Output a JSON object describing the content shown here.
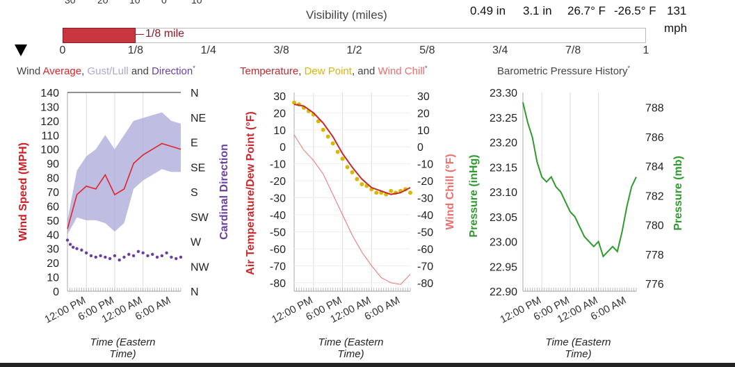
{
  "header": {
    "cut_ticks": [
      "30",
      "20",
      "10",
      "0",
      "10"
    ],
    "visibility_title": "Visibility (miles)",
    "stats": [
      "0.49 in",
      "3.1 in",
      "26.7° F",
      "-26.5° F",
      "131"
    ],
    "stats_unit": "mph"
  },
  "visibility": {
    "value_label": "1/8 mile",
    "value_fraction": 0.125,
    "ticks": [
      "0",
      "1/8",
      "1/4",
      "3/8",
      "1/2",
      "5/8",
      "3/4",
      "7/8",
      "1"
    ],
    "fill_color": "#c8363f"
  },
  "chart_titles": {
    "wind": [
      {
        "text": "Wind ",
        "color": "#444"
      },
      {
        "text": "Average",
        "color": "#e0242c"
      },
      {
        "text": ", ",
        "color": "#444"
      },
      {
        "text": "Gust/Lull",
        "color": "#a9a7d8"
      },
      {
        "text": " and ",
        "color": "#444"
      },
      {
        "text": "Direction",
        "color": "#6b3fa0"
      }
    ],
    "temp": [
      {
        "text": "Temperature",
        "color": "#c8272c"
      },
      {
        "text": ", ",
        "color": "#444"
      },
      {
        "text": "Dew Point",
        "color": "#d8b800"
      },
      {
        "text": ", and ",
        "color": "#444"
      },
      {
        "text": "Wind Chill",
        "color": "#ee6e6e"
      }
    ],
    "pressure": [
      {
        "text": "Barometric Pressure History",
        "color": "#444"
      }
    ],
    "asterisk": "*"
  },
  "chart_data": [
    {
      "type": "area",
      "name": "wind",
      "ylabel": "Wind Speed (MPH)",
      "y2label": "Cardinal Direction",
      "xlabel": "Time (Eastern Time)",
      "ylim": [
        0,
        140
      ],
      "yticks": [
        0,
        10,
        20,
        30,
        40,
        50,
        60,
        70,
        80,
        90,
        100,
        110,
        120,
        130,
        140
      ],
      "direction_ticks": [
        "N",
        "NE",
        "E",
        "SE",
        "S",
        "SW",
        "W",
        "NW",
        "N"
      ],
      "xticks": [
        "12:00 PM",
        "6:00 PM",
        "12:00 AM",
        "6:00 AM"
      ],
      "series": [
        {
          "name": "Average",
          "color": "#e0242c",
          "x": [
            0,
            2,
            4,
            6,
            8,
            10,
            12,
            14,
            16,
            18,
            20,
            22,
            24
          ],
          "values": [
            44,
            68,
            74,
            72,
            82,
            68,
            72,
            90,
            96,
            100,
            104,
            102,
            100
          ]
        },
        {
          "name": "Gust",
          "color": "#a9a7d8",
          "x": [
            0,
            2,
            4,
            6,
            8,
            10,
            12,
            14,
            16,
            18,
            20,
            22,
            24
          ],
          "values": [
            50,
            85,
            95,
            100,
            110,
            100,
            110,
            120,
            122,
            124,
            126,
            120,
            118
          ]
        },
        {
          "name": "Lull",
          "color": "#a9a7d8",
          "x": [
            0,
            2,
            4,
            6,
            8,
            10,
            12,
            14,
            16,
            18,
            20,
            22,
            24
          ],
          "values": [
            40,
            52,
            50,
            50,
            48,
            42,
            48,
            72,
            78,
            82,
            86,
            84,
            84
          ]
        },
        {
          "name": "Direction",
          "color": "#6b3fa0",
          "x": [
            0,
            2,
            4,
            6,
            8,
            10,
            12,
            14,
            16,
            18,
            20,
            22,
            24
          ],
          "values": [
            36,
            30,
            28,
            25,
            24,
            25,
            24,
            25,
            27,
            26,
            25,
            24,
            23
          ]
        }
      ],
      "direction_points": [
        [
          0,
          36
        ],
        [
          0.6,
          33
        ],
        [
          1.2,
          31
        ],
        [
          2,
          30
        ],
        [
          3,
          29
        ],
        [
          4,
          27
        ],
        [
          5,
          25
        ],
        [
          6,
          24
        ],
        [
          7,
          25
        ],
        [
          8,
          24
        ],
        [
          9,
          23
        ],
        [
          10,
          25
        ],
        [
          11,
          22
        ],
        [
          12,
          24
        ],
        [
          13,
          26
        ],
        [
          14,
          25
        ],
        [
          15,
          28
        ],
        [
          16,
          27
        ],
        [
          17,
          25
        ],
        [
          18,
          26
        ],
        [
          19,
          24
        ],
        [
          20,
          25
        ],
        [
          21,
          27
        ],
        [
          22,
          24
        ],
        [
          23,
          23
        ],
        [
          24,
          24
        ]
      ]
    },
    {
      "type": "line",
      "name": "temperature",
      "ylabel": "Air Temperature/Dew Point (°F)",
      "y2label": "Wind Chill (°F)",
      "xlabel": "Time (Eastern Time)",
      "ylim": [
        -85,
        32
      ],
      "yticks": [
        -80,
        -70,
        -60,
        -50,
        -40,
        -30,
        -20,
        -10,
        0,
        10,
        20,
        30
      ],
      "xticks": [
        "12:00 PM",
        "6:00 PM",
        "12:00 AM",
        "6:00 AM"
      ],
      "series": [
        {
          "name": "Temperature",
          "color": "#c8272c",
          "x": [
            0,
            2,
            4,
            6,
            8,
            10,
            12,
            14,
            16,
            18,
            20,
            22,
            24
          ],
          "values": [
            25,
            24,
            20,
            14,
            6,
            -4,
            -12,
            -19,
            -24,
            -26,
            -28,
            -27,
            -24
          ]
        },
        {
          "name": "Dew Point",
          "color": "#d8b800",
          "x": [
            0,
            1,
            2,
            3,
            4,
            5,
            6,
            7,
            8,
            9,
            10,
            11,
            12,
            13,
            14,
            15,
            16,
            17,
            18,
            19,
            20,
            21,
            22,
            23,
            24
          ],
          "values": [
            26,
            25,
            23,
            21,
            19,
            15,
            10,
            6,
            2,
            -3,
            -7,
            -12,
            -15,
            -19,
            -22,
            -23,
            -25,
            -27,
            -27,
            -28,
            -26,
            -27,
            -26,
            -25,
            -27
          ]
        },
        {
          "name": "Wind Chill",
          "color": "#ee6e6e",
          "x": [
            0,
            2,
            4,
            6,
            8,
            10,
            12,
            14,
            16,
            18,
            20,
            22,
            24
          ],
          "values": [
            7,
            -2,
            -8,
            -16,
            -28,
            -40,
            -52,
            -62,
            -70,
            -77,
            -80,
            -81,
            -75
          ]
        }
      ]
    },
    {
      "type": "line",
      "name": "pressure",
      "ylabel": "Pressure (inHg)",
      "y2label": "Pressure (mb)",
      "xlabel": "Time (Eastern Time)",
      "ylim": [
        22.9,
        23.3
      ],
      "yticks": [
        "22.90",
        "22.95",
        "23.00",
        "23.05",
        "23.10",
        "23.15",
        "23.20",
        "23.25",
        "23.30"
      ],
      "y2ticks": [
        "776",
        "778",
        "780",
        "782",
        "784",
        "786",
        "788"
      ],
      "xticks": [
        "12:00 PM",
        "6:00 PM",
        "12:00 AM",
        "6:00 AM"
      ],
      "series": [
        {
          "name": "Pressure",
          "color": "#2e9a2e",
          "x": [
            0,
            1,
            2,
            3,
            4,
            5,
            6,
            7,
            8,
            9,
            10,
            11,
            12,
            13,
            14,
            15,
            16,
            17,
            18,
            19,
            20,
            21,
            22,
            23,
            24
          ],
          "values": [
            23.28,
            23.24,
            23.21,
            23.16,
            23.13,
            23.12,
            23.13,
            23.11,
            23.1,
            23.08,
            23.06,
            23.05,
            23.03,
            23.01,
            23.0,
            22.99,
            23.0,
            22.97,
            22.98,
            22.99,
            22.98,
            23.02,
            23.07,
            23.11,
            23.13
          ]
        }
      ]
    }
  ]
}
